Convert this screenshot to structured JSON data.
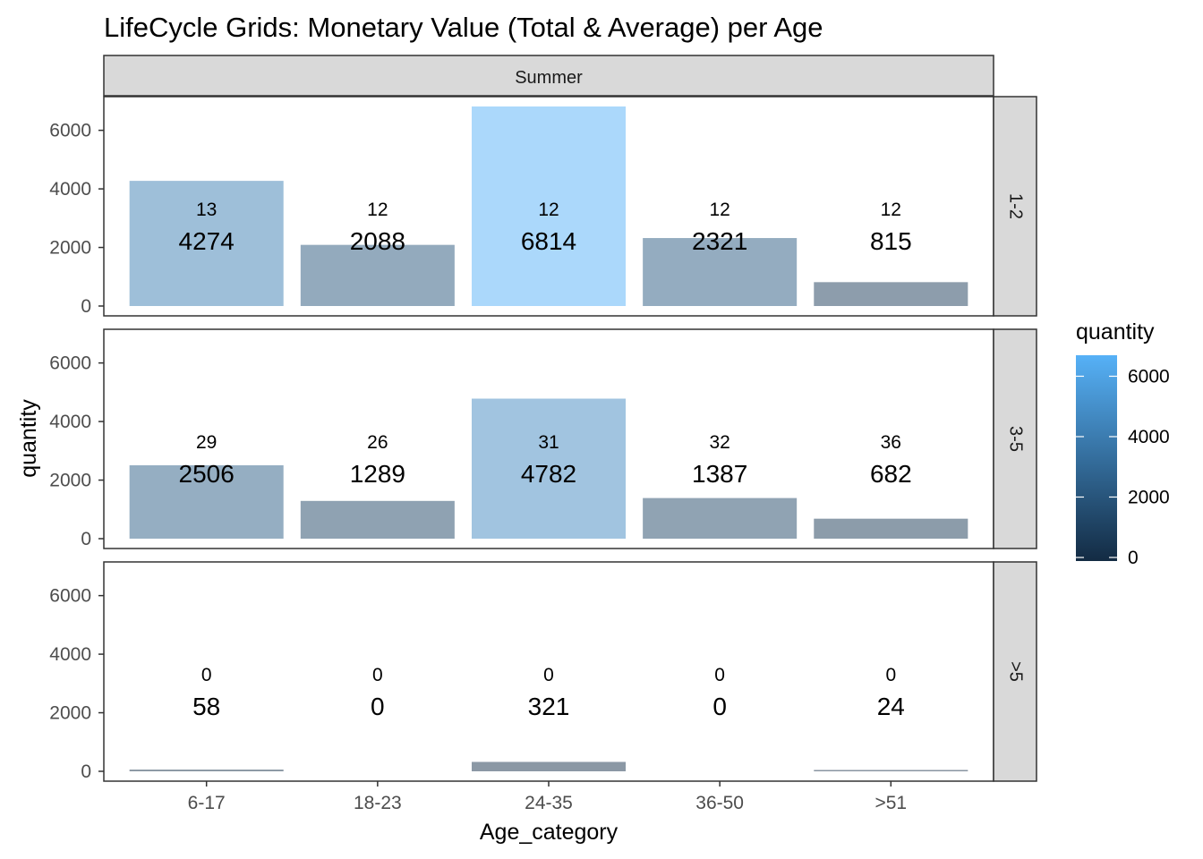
{
  "chart_data": {
    "type": "bar",
    "title": "LifeCycle Grids: Monetary Value (Total & Average) per Age",
    "xlabel": "Age_category",
    "ylabel": "quantity",
    "categories": [
      "6-17",
      "18-23",
      "24-35",
      "36-50",
      ">51"
    ],
    "ylim": [
      0,
      6814
    ],
    "yticks": [
      "0",
      "2000",
      "4000",
      "6000"
    ],
    "column_facet": "Summer",
    "panels": [
      {
        "row": "1-2",
        "values": [
          4274,
          2088,
          6814,
          2321,
          815
        ],
        "counts": [
          13,
          12,
          12,
          12,
          12
        ],
        "value_labels": [
          "4274",
          "2088",
          "6814",
          "2321",
          "815"
        ],
        "count_labels": [
          "13",
          "12",
          "12",
          "12",
          "12"
        ]
      },
      {
        "row": "3-5",
        "values": [
          2506,
          1289,
          4782,
          1387,
          682
        ],
        "counts": [
          29,
          26,
          31,
          32,
          36
        ],
        "value_labels": [
          "2506",
          "1289",
          "4782",
          "1387",
          "682"
        ],
        "count_labels": [
          "29",
          "26",
          "31",
          "32",
          "36"
        ]
      },
      {
        "row": ">5",
        "values": [
          58,
          0,
          321,
          0,
          24
        ],
        "counts": [
          0,
          0,
          0,
          0,
          0
        ],
        "value_labels": [
          "58",
          "0",
          "321",
          "0",
          "24"
        ],
        "count_labels": [
          "0",
          "0",
          "0",
          "0",
          "0"
        ]
      }
    ],
    "legend": {
      "title": "quantity",
      "placement": "right",
      "ticks": [
        "0",
        "2000",
        "4000",
        "6000"
      ],
      "range": [
        0,
        6814
      ],
      "color_low": "#132b43",
      "color_high": "#56b1f7"
    },
    "bar_alpha": 0.5,
    "grid": false,
    "background": "#ffffff",
    "strip_fill": "#d9d9d9"
  }
}
